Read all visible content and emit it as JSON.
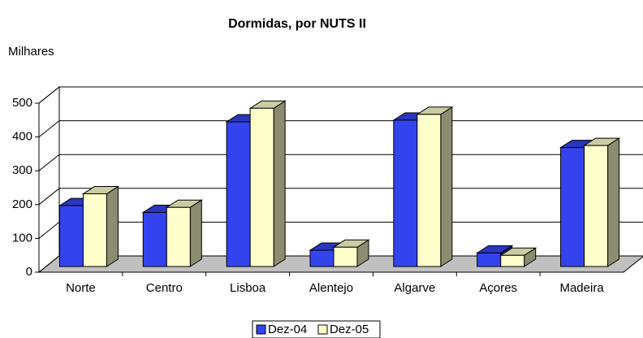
{
  "chart_data": {
    "type": "bar3d",
    "title": "Dormidas, por NUTS II",
    "y_label": "Milhares",
    "categories": [
      "Norte",
      "Centro",
      "Lisboa",
      "Alentejo",
      "Algarve",
      "Açores",
      "Madeira"
    ],
    "series": [
      {
        "name": "Dez-04",
        "color": "#3344ee",
        "values": [
          180,
          160,
          428,
          48,
          433,
          40,
          352
        ]
      },
      {
        "name": "Dez-05",
        "color": "#ffffcc",
        "values": [
          215,
          175,
          468,
          57,
          450,
          33,
          358
        ]
      }
    ],
    "ylim": [
      0,
      500
    ],
    "yticks": [
      0,
      100,
      200,
      300,
      400,
      500
    ],
    "grid": true
  }
}
